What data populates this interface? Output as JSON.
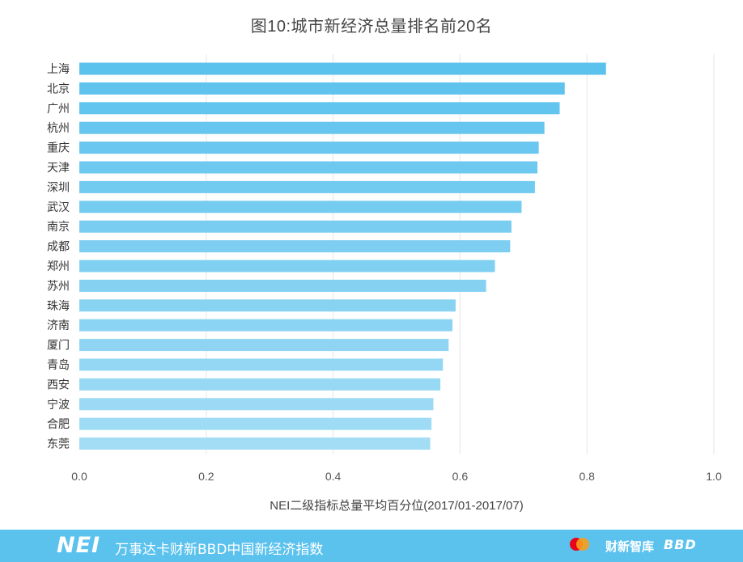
{
  "footer": {
    "logo": "NEI",
    "text": "万事达卡财新BBD中国新经济指数",
    "caixin_logo": "财新智库",
    "bbd_logo": "BBD",
    "icons": [
      "mastercard-icon"
    ]
  },
  "colors": {
    "bar_top": "#5bc2ee",
    "bar_bottom": "#a2dcf5",
    "footer": "#5bc2ee"
  },
  "chart_data": {
    "type": "bar",
    "orientation": "horizontal",
    "title": "图10:城市新经济总量排名前20名",
    "xlabel": "NEI二级指标总量平均百分位(2017/01-2017/07)",
    "ylabel": "",
    "xlim": [
      0.0,
      1.0
    ],
    "xticks": [
      "0.0",
      "0.2",
      "0.4",
      "0.6",
      "0.8",
      "1.0"
    ],
    "grid": "vertical",
    "categories": [
      "上海",
      "北京",
      "广州",
      "杭州",
      "重庆",
      "天津",
      "深圳",
      "武汉",
      "南京",
      "成都",
      "郑州",
      "苏州",
      "珠海",
      "济南",
      "厦门",
      "青岛",
      "西安",
      "宁波",
      "合肥",
      "东莞"
    ],
    "values": [
      0.83,
      0.765,
      0.757,
      0.733,
      0.724,
      0.722,
      0.718,
      0.697,
      0.681,
      0.679,
      0.655,
      0.641,
      0.593,
      0.588,
      0.582,
      0.573,
      0.569,
      0.558,
      0.555,
      0.553
    ]
  }
}
